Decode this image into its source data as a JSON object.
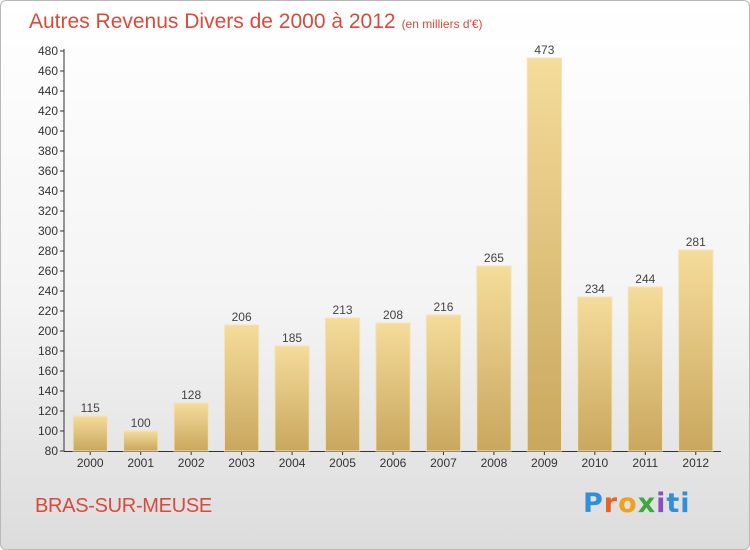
{
  "chart_data": {
    "type": "bar",
    "title": "Autres Revenus Divers de 2000 à 2012",
    "subtitle": "(en milliers d'€)",
    "categories": [
      "2000",
      "2001",
      "2002",
      "2003",
      "2004",
      "2005",
      "2006",
      "2007",
      "2008",
      "2009",
      "2010",
      "2011",
      "2012"
    ],
    "values": [
      115,
      100,
      128,
      206,
      185,
      213,
      208,
      216,
      265,
      473,
      234,
      244,
      281
    ],
    "ylim": [
      80,
      480
    ],
    "ytick_step": 20,
    "grid": false,
    "bar_color": "#e6c57e",
    "label_color": "#444444"
  },
  "footer": {
    "city": "BRAS-SUR-MEUSE",
    "logo": "Proxiti"
  },
  "colors": {
    "title": "#d94a3b",
    "city": "#d94a3b"
  }
}
